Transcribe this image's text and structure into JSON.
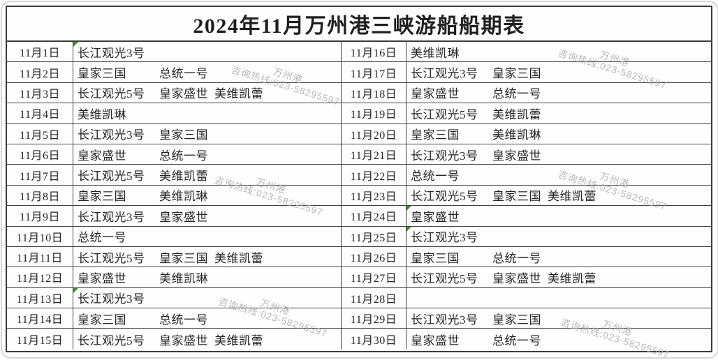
{
  "title": "2024年11月万州港三峡游船船期表",
  "watermark": {
    "port": "万州港",
    "hotline": "咨询热线:023-58295597"
  },
  "colors": {
    "table_border": "#3c3c3c",
    "text": "#242424",
    "watermark_gray": "#b1afae",
    "corner_mark_green": "#3e8e2e",
    "background": "#ffffff"
  },
  "schedule": [
    {
      "date": "11月1日",
      "ships": [
        "长江观光3号"
      ],
      "corner_mark": true
    },
    {
      "date": "11月2日",
      "ships": [
        "皇家三国",
        "总统一号"
      ]
    },
    {
      "date": "11月3日",
      "ships": [
        "长江观光5号",
        "皇家盛世",
        "美维凯蕾"
      ]
    },
    {
      "date": "11月4日",
      "ships": [
        "美维凯琳"
      ]
    },
    {
      "date": "11月5日",
      "ships": [
        "长江观光3号",
        "皇家三国"
      ]
    },
    {
      "date": "11月6日",
      "ships": [
        "皇家盛世",
        "总统一号"
      ]
    },
    {
      "date": "11月7日",
      "ships": [
        "长江观光5号",
        "美维凯蕾"
      ]
    },
    {
      "date": "11月8日",
      "ships": [
        "皇家三国",
        "美维凯琳"
      ]
    },
    {
      "date": "11月9日",
      "ships": [
        "长江观光3号",
        "皇家盛世"
      ]
    },
    {
      "date": "11月10日",
      "ships": [
        "总统一号"
      ]
    },
    {
      "date": "11月11日",
      "ships": [
        "长江观光5号",
        "皇家三国",
        "美维凯蕾"
      ]
    },
    {
      "date": "11月12日",
      "ships": [
        "皇家盛世",
        "美维凯琳"
      ]
    },
    {
      "date": "11月13日",
      "ships": [
        "长江观光3号"
      ],
      "corner_mark": true
    },
    {
      "date": "11月14日",
      "ships": [
        "皇家三国",
        "总统一号"
      ]
    },
    {
      "date": "11月15日",
      "ships": [
        "长江观光5号",
        "皇家盛世",
        "美维凯蕾"
      ]
    },
    {
      "date": "11月16日",
      "ships": [
        "美维凯琳"
      ]
    },
    {
      "date": "11月17日",
      "ships": [
        "长江观光3号",
        "皇家三国"
      ]
    },
    {
      "date": "11月18日",
      "ships": [
        "皇家盛世",
        "总统一号"
      ]
    },
    {
      "date": "11月19日",
      "ships": [
        "长江观光5号",
        "美维凯蕾"
      ]
    },
    {
      "date": "11月20日",
      "ships": [
        "皇家三国",
        "美维凯琳"
      ]
    },
    {
      "date": "11月21日",
      "ships": [
        "长江观光3号",
        "皇家盛世"
      ]
    },
    {
      "date": "11月22日",
      "ships": [
        "总统一号"
      ]
    },
    {
      "date": "11月23日",
      "ships": [
        "长江观光5号",
        "皇家三国",
        "美维凯蕾"
      ]
    },
    {
      "date": "11月24日",
      "ships": [
        "皇家盛世"
      ],
      "corner_mark": true
    },
    {
      "date": "11月25日",
      "ships": [
        "长江观光3号"
      ],
      "corner_mark": true
    },
    {
      "date": "11月26日",
      "ships": [
        "皇家三国",
        "总统一号"
      ]
    },
    {
      "date": "11月27日",
      "ships": [
        "长江观光5号",
        "皇家盛世",
        "美维凯蕾"
      ]
    },
    {
      "date": "11月28日",
      "ships": []
    },
    {
      "date": "11月29日",
      "ships": [
        "长江观光3号",
        "皇家三国"
      ]
    },
    {
      "date": "11月30日",
      "ships": [
        "皇家盛世",
        "总统一号"
      ]
    }
  ]
}
